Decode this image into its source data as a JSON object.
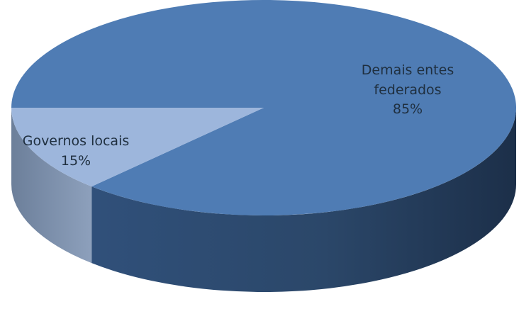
{
  "chart_data": {
    "type": "pie",
    "style": "3d",
    "slices": [
      {
        "label": "Demais entes federados",
        "label_lines": [
          "Demais entes",
          "federados"
        ],
        "value": 85,
        "value_label": "85%",
        "color": "#4f7cb4"
      },
      {
        "label": "Governos locais",
        "label_lines": [
          "Governos locais"
        ],
        "value": 15,
        "value_label": "15%",
        "color": "#9db6dc"
      }
    ],
    "title": "",
    "legend": "none"
  }
}
